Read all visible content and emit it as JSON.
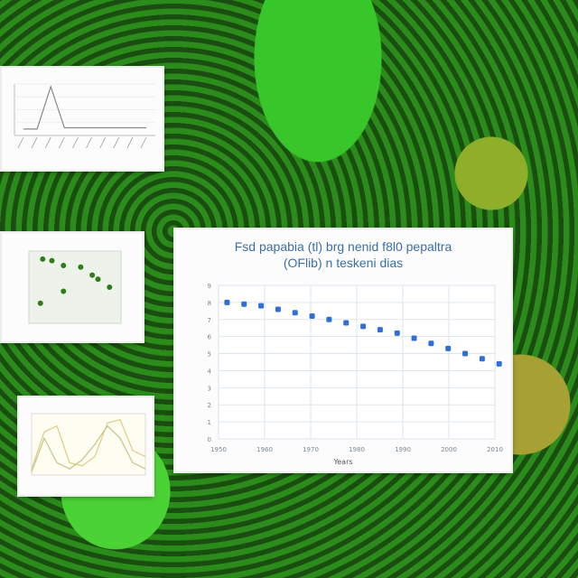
{
  "scene": {
    "description_icons": [
      "leaf-pattern",
      "plant-cells"
    ],
    "colors": {
      "accent_green": "#37c72a",
      "point_blue": "#2f6fd6",
      "card_white": "#fbfcfb"
    }
  },
  "cards": {
    "top_left": {
      "title": "",
      "chart_data": {
        "type": "line",
        "x": [
          1,
          2,
          3,
          4,
          5,
          6,
          7,
          8,
          9,
          10
        ],
        "series": [
          {
            "values": [
              5,
              5,
              38,
              6,
              6,
              6,
              6,
              6,
              6,
              6
            ]
          }
        ],
        "ylim": [
          0,
          40
        ]
      }
    },
    "middle_left": {
      "title": "",
      "chart_data": {
        "type": "scatter",
        "points": [
          [
            12,
            80
          ],
          [
            20,
            78
          ],
          [
            30,
            72
          ],
          [
            45,
            70
          ],
          [
            55,
            60
          ],
          [
            60,
            55
          ],
          [
            30,
            40
          ],
          [
            70,
            45
          ],
          [
            10,
            25
          ]
        ]
      }
    },
    "bottom_left": {
      "title": "",
      "chart_data": {
        "type": "line",
        "x": [
          1,
          2,
          3,
          4,
          5,
          6,
          7,
          8,
          9,
          10
        ],
        "series": [
          {
            "values": [
              10,
              70,
              80,
              20,
              15,
              30,
              85,
              90,
              40,
              30
            ]
          },
          {
            "values": [
              5,
              60,
              20,
              10,
              25,
              50,
              80,
              60,
              20,
              10
            ]
          }
        ]
      }
    },
    "main": {
      "title": "Fsd papabia (tl) brg nenid f8l0 pepaltra\n(OFlib) n teskeni dias",
      "xlabel": "Years",
      "ylabel": "",
      "xticks": [
        "1950",
        "1960",
        "1970",
        "1980",
        "1990",
        "2000",
        "2010"
      ],
      "yticks": [
        "0",
        "1",
        "2",
        "3",
        "4",
        "5",
        "6",
        "7",
        "8",
        "9"
      ],
      "chart_data": {
        "type": "scatter",
        "x": [
          1952,
          1956,
          1960,
          1964,
          1968,
          1972,
          1976,
          1980,
          1984,
          1988,
          1992,
          1996,
          2000,
          2004,
          2008,
          2012,
          2016
        ],
        "values": [
          8.0,
          7.9,
          7.8,
          7.6,
          7.4,
          7.2,
          7.0,
          6.8,
          6.6,
          6.4,
          6.2,
          5.9,
          5.6,
          5.3,
          5.0,
          4.7,
          4.4
        ],
        "xlim": [
          1950,
          2015
        ],
        "ylim": [
          0,
          9
        ],
        "grid": true
      }
    }
  }
}
